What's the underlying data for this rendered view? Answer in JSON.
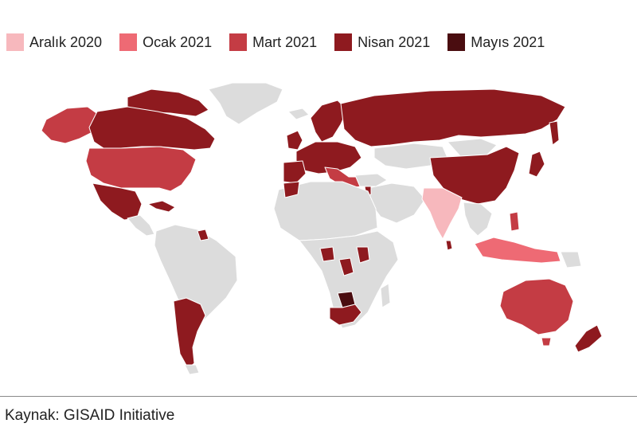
{
  "legend": [
    {
      "label": "Aralık 2020",
      "color": "#f7b8bd"
    },
    {
      "label": "Ocak 2021",
      "color": "#ee6a74"
    },
    {
      "label": "Mart 2021",
      "color": "#c43c44"
    },
    {
      "label": "Nisan 2021",
      "color": "#8e1a1f"
    },
    {
      "label": "Mayıs 2021",
      "color": "#4a0d10"
    }
  ],
  "colors": {
    "no_data": "#dcdcdc",
    "background": "#ffffff",
    "divider": "#8a8a8a"
  },
  "source": "Kaynak: GISAID Initiative"
}
